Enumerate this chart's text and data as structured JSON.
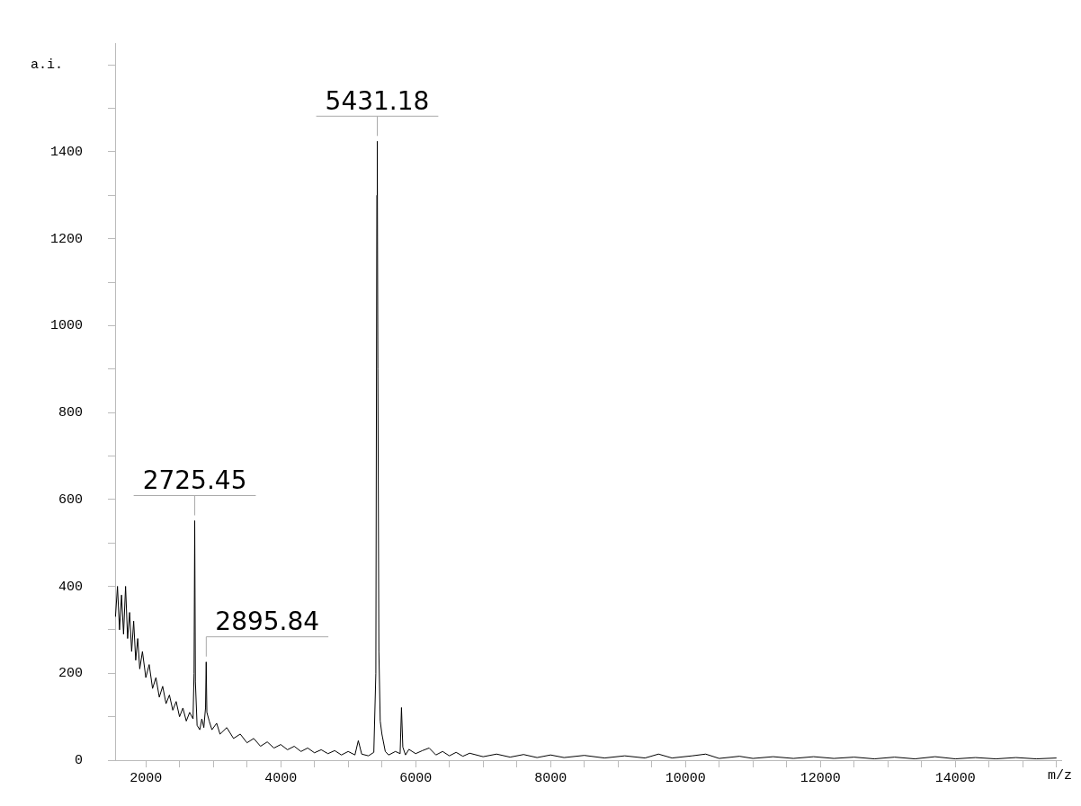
{
  "chart_data": {
    "type": "line",
    "xlabel": "m/z",
    "ylabel": "a.i.",
    "xlim": [
      1545,
      15570
    ],
    "ylim": [
      0,
      1650
    ],
    "xticks": [
      2000,
      {
        "value": 2500,
        "label": null
      },
      {
        "value": 3000,
        "label": null
      },
      {
        "value": 3500,
        "label": null
      },
      4000,
      {
        "value": 4500,
        "label": null
      },
      {
        "value": 5000,
        "label": null
      },
      {
        "value": 5500,
        "label": null
      },
      6000,
      {
        "value": 6500,
        "label": null
      },
      {
        "value": 7000,
        "label": null
      },
      {
        "value": 7500,
        "label": null
      },
      8000,
      {
        "value": 8500,
        "label": null
      },
      {
        "value": 9000,
        "label": null
      },
      {
        "value": 9500,
        "label": null
      },
      10000,
      {
        "value": 10500,
        "label": null
      },
      {
        "value": 11000,
        "label": null
      },
      {
        "value": 11500,
        "label": null
      },
      12000,
      {
        "value": 12500,
        "label": null
      },
      {
        "value": 13000,
        "label": null
      },
      {
        "value": 13500,
        "label": null
      },
      14000,
      {
        "value": 14500,
        "label": null
      },
      {
        "value": 15000,
        "label": null
      },
      {
        "value": 15500,
        "label": null
      }
    ],
    "yticks": [
      0,
      {
        "value": 100,
        "label": null
      },
      200,
      {
        "value": 300,
        "label": null
      },
      400,
      {
        "value": 500,
        "label": null
      },
      600,
      {
        "value": 700,
        "label": null
      },
      800,
      {
        "value": 900,
        "label": null
      },
      1000,
      {
        "value": 1100,
        "label": null
      },
      1200,
      {
        "value": 1300,
        "label": null
      },
      1400,
      {
        "value": 1500,
        "label": null
      },
      {
        "value": 1600,
        "label": null
      }
    ],
    "grid": false,
    "legend": false,
    "marker": "none",
    "line_style": "solid",
    "annotations": [
      {
        "text": "2725.45",
        "x": 2725.45,
        "y": 551
      },
      {
        "text": "2895.84",
        "x": 2895.84,
        "y": 226
      },
      {
        "text": "5431.18",
        "x": 5431.18,
        "y": 1424
      }
    ],
    "series": [
      {
        "color": "#000000",
        "x": [
          1550,
          1580,
          1610,
          1640,
          1670,
          1700,
          1730,
          1760,
          1790,
          1820,
          1850,
          1880,
          1910,
          1950,
          2000,
          2050,
          2100,
          2150,
          2200,
          2250,
          2300,
          2350,
          2400,
          2450,
          2500,
          2550,
          2600,
          2650,
          2700,
          2715,
          2725,
          2735,
          2760,
          2800,
          2830,
          2860,
          2885,
          2895,
          2905,
          2940,
          2980,
          3050,
          3100,
          3200,
          3300,
          3400,
          3500,
          3600,
          3700,
          3800,
          3900,
          4000,
          4100,
          4200,
          4300,
          4400,
          4500,
          4600,
          4700,
          4800,
          4900,
          5000,
          5100,
          5150,
          5200,
          5300,
          5380,
          5410,
          5425,
          5431,
          5440,
          5455,
          5475,
          5500,
          5550,
          5600,
          5700,
          5770,
          5790,
          5810,
          5850,
          5900,
          6000,
          6100,
          6200,
          6300,
          6400,
          6500,
          6600,
          6700,
          6800,
          7000,
          7200,
          7400,
          7600,
          7800,
          8000,
          8200,
          8500,
          8800,
          9100,
          9400,
          9600,
          9800,
          10100,
          10300,
          10500,
          10800,
          11000,
          11300,
          11600,
          11900,
          12200,
          12500,
          12800,
          13100,
          13400,
          13700,
          14000,
          14300,
          14600,
          14900,
          15200,
          15500
        ],
        "values": [
          330,
          400,
          300,
          380,
          290,
          400,
          280,
          340,
          250,
          320,
          230,
          280,
          210,
          250,
          190,
          220,
          165,
          190,
          145,
          170,
          130,
          150,
          115,
          135,
          100,
          120,
          90,
          110,
          95,
          200,
          551,
          180,
          80,
          70,
          95,
          75,
          120,
          226,
          110,
          90,
          70,
          85,
          60,
          75,
          50,
          60,
          40,
          50,
          32,
          42,
          28,
          36,
          24,
          32,
          20,
          28,
          17,
          24,
          15,
          22,
          12,
          20,
          12,
          45,
          14,
          10,
          18,
          200,
          1300,
          1424,
          900,
          250,
          90,
          60,
          20,
          12,
          20,
          15,
          121,
          30,
          12,
          25,
          15,
          22,
          28,
          12,
          20,
          10,
          18,
          9,
          16,
          8,
          14,
          7,
          13,
          6,
          12,
          6,
          11,
          5,
          10,
          5,
          14,
          5,
          10,
          14,
          4,
          9,
          4,
          8,
          4,
          8,
          4,
          7,
          3,
          7,
          3,
          8,
          3,
          6,
          3,
          6,
          3,
          5
        ]
      }
    ]
  }
}
